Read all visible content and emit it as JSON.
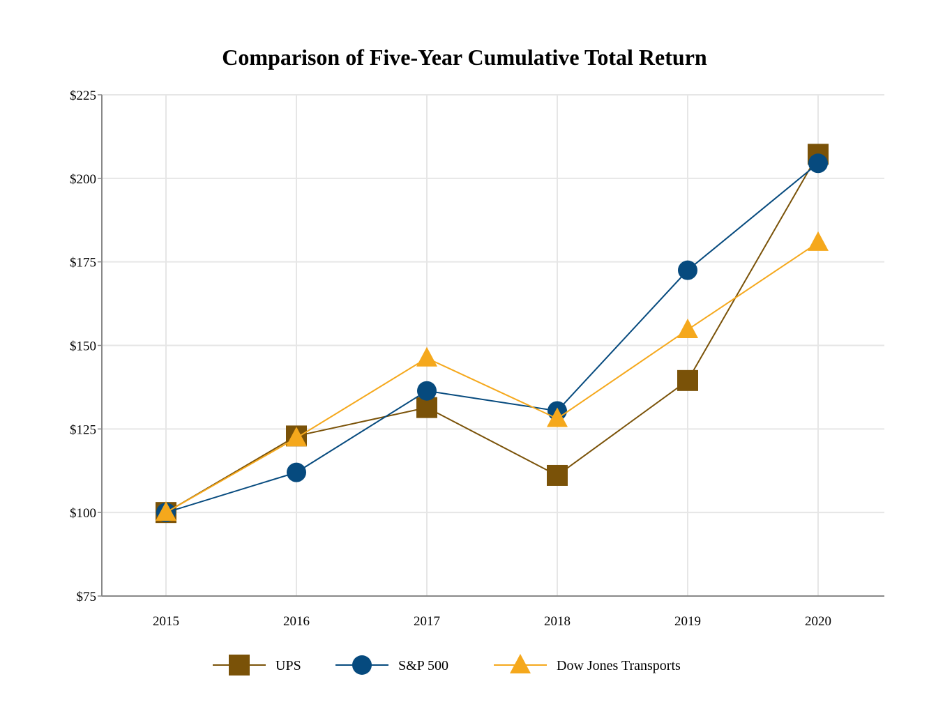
{
  "chart_data": {
    "type": "line",
    "title": "Comparison of Five-Year Cumulative Total Return",
    "xlabel": "",
    "ylabel": "",
    "categories": [
      "2015",
      "2016",
      "2017",
      "2018",
      "2019",
      "2020"
    ],
    "ylim": [
      75,
      225
    ],
    "yticks": [
      75,
      100,
      125,
      150,
      175,
      200,
      225
    ],
    "ytick_labels": [
      "$75",
      "$100",
      "$125",
      "$150",
      "$175",
      "$200",
      "$225"
    ],
    "grid": true,
    "legend_position": "bottom",
    "series": [
      {
        "name": "UPS",
        "marker": "square",
        "color": "#7a5208",
        "values": [
          100.0,
          122.9,
          131.4,
          111.1,
          139.5,
          207.2
        ]
      },
      {
        "name": "S&P 500",
        "marker": "circle",
        "color": "#064a7e",
        "values": [
          100.0,
          112.0,
          136.4,
          130.4,
          172.5,
          204.5
        ]
      },
      {
        "name": "Dow Jones Transports",
        "marker": "triangle",
        "color": "#f5a81c",
        "values": [
          100.0,
          122.3,
          146.2,
          128.1,
          154.7,
          180.8
        ]
      }
    ]
  }
}
